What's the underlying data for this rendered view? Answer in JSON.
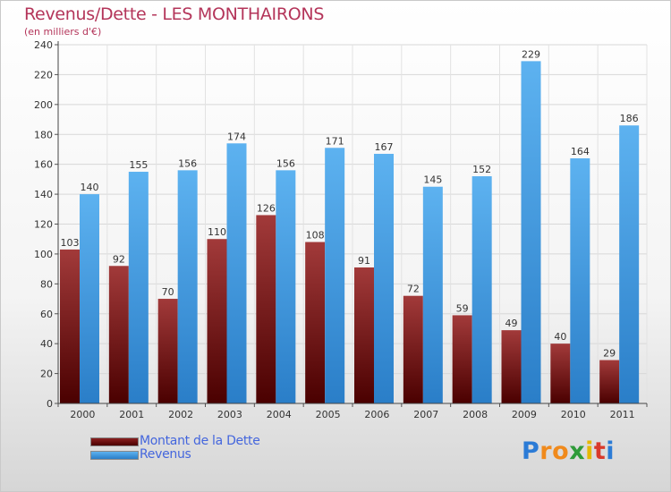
{
  "chart_data": {
    "type": "bar",
    "title": "Revenus/Dette - LES MONTHAIRONS",
    "subtitle": "(en milliers d'€)",
    "categories": [
      "2000",
      "2001",
      "2002",
      "2003",
      "2004",
      "2005",
      "2006",
      "2007",
      "2008",
      "2009",
      "2010",
      "2011"
    ],
    "series": [
      {
        "name": "Montant de la Dette",
        "color": "#7a1a1a",
        "values": [
          103,
          92,
          70,
          110,
          126,
          108,
          91,
          72,
          59,
          49,
          40,
          29
        ]
      },
      {
        "name": "Revenus",
        "color": "#3f9be0",
        "values": [
          140,
          155,
          156,
          174,
          156,
          171,
          167,
          145,
          152,
          229,
          164,
          186
        ]
      }
    ],
    "ylim": [
      0,
      240
    ],
    "yticks": [
      0,
      20,
      40,
      60,
      80,
      100,
      120,
      140,
      160,
      180,
      200,
      220,
      240
    ],
    "grid": true,
    "legend_position": "bottom-left",
    "xlabel": "",
    "ylabel": ""
  },
  "logo": {
    "text": "Proxiti",
    "letters": [
      {
        "ch": "P",
        "color": "#2b7bd6"
      },
      {
        "ch": "r",
        "color": "#f08a1c"
      },
      {
        "ch": "o",
        "color": "#f08a1c"
      },
      {
        "ch": "x",
        "color": "#2f9b3a"
      },
      {
        "ch": "i",
        "color": "#e6b800"
      },
      {
        "ch": "t",
        "color": "#d93a2b"
      },
      {
        "ch": "i",
        "color": "#2b7bd6"
      }
    ]
  }
}
